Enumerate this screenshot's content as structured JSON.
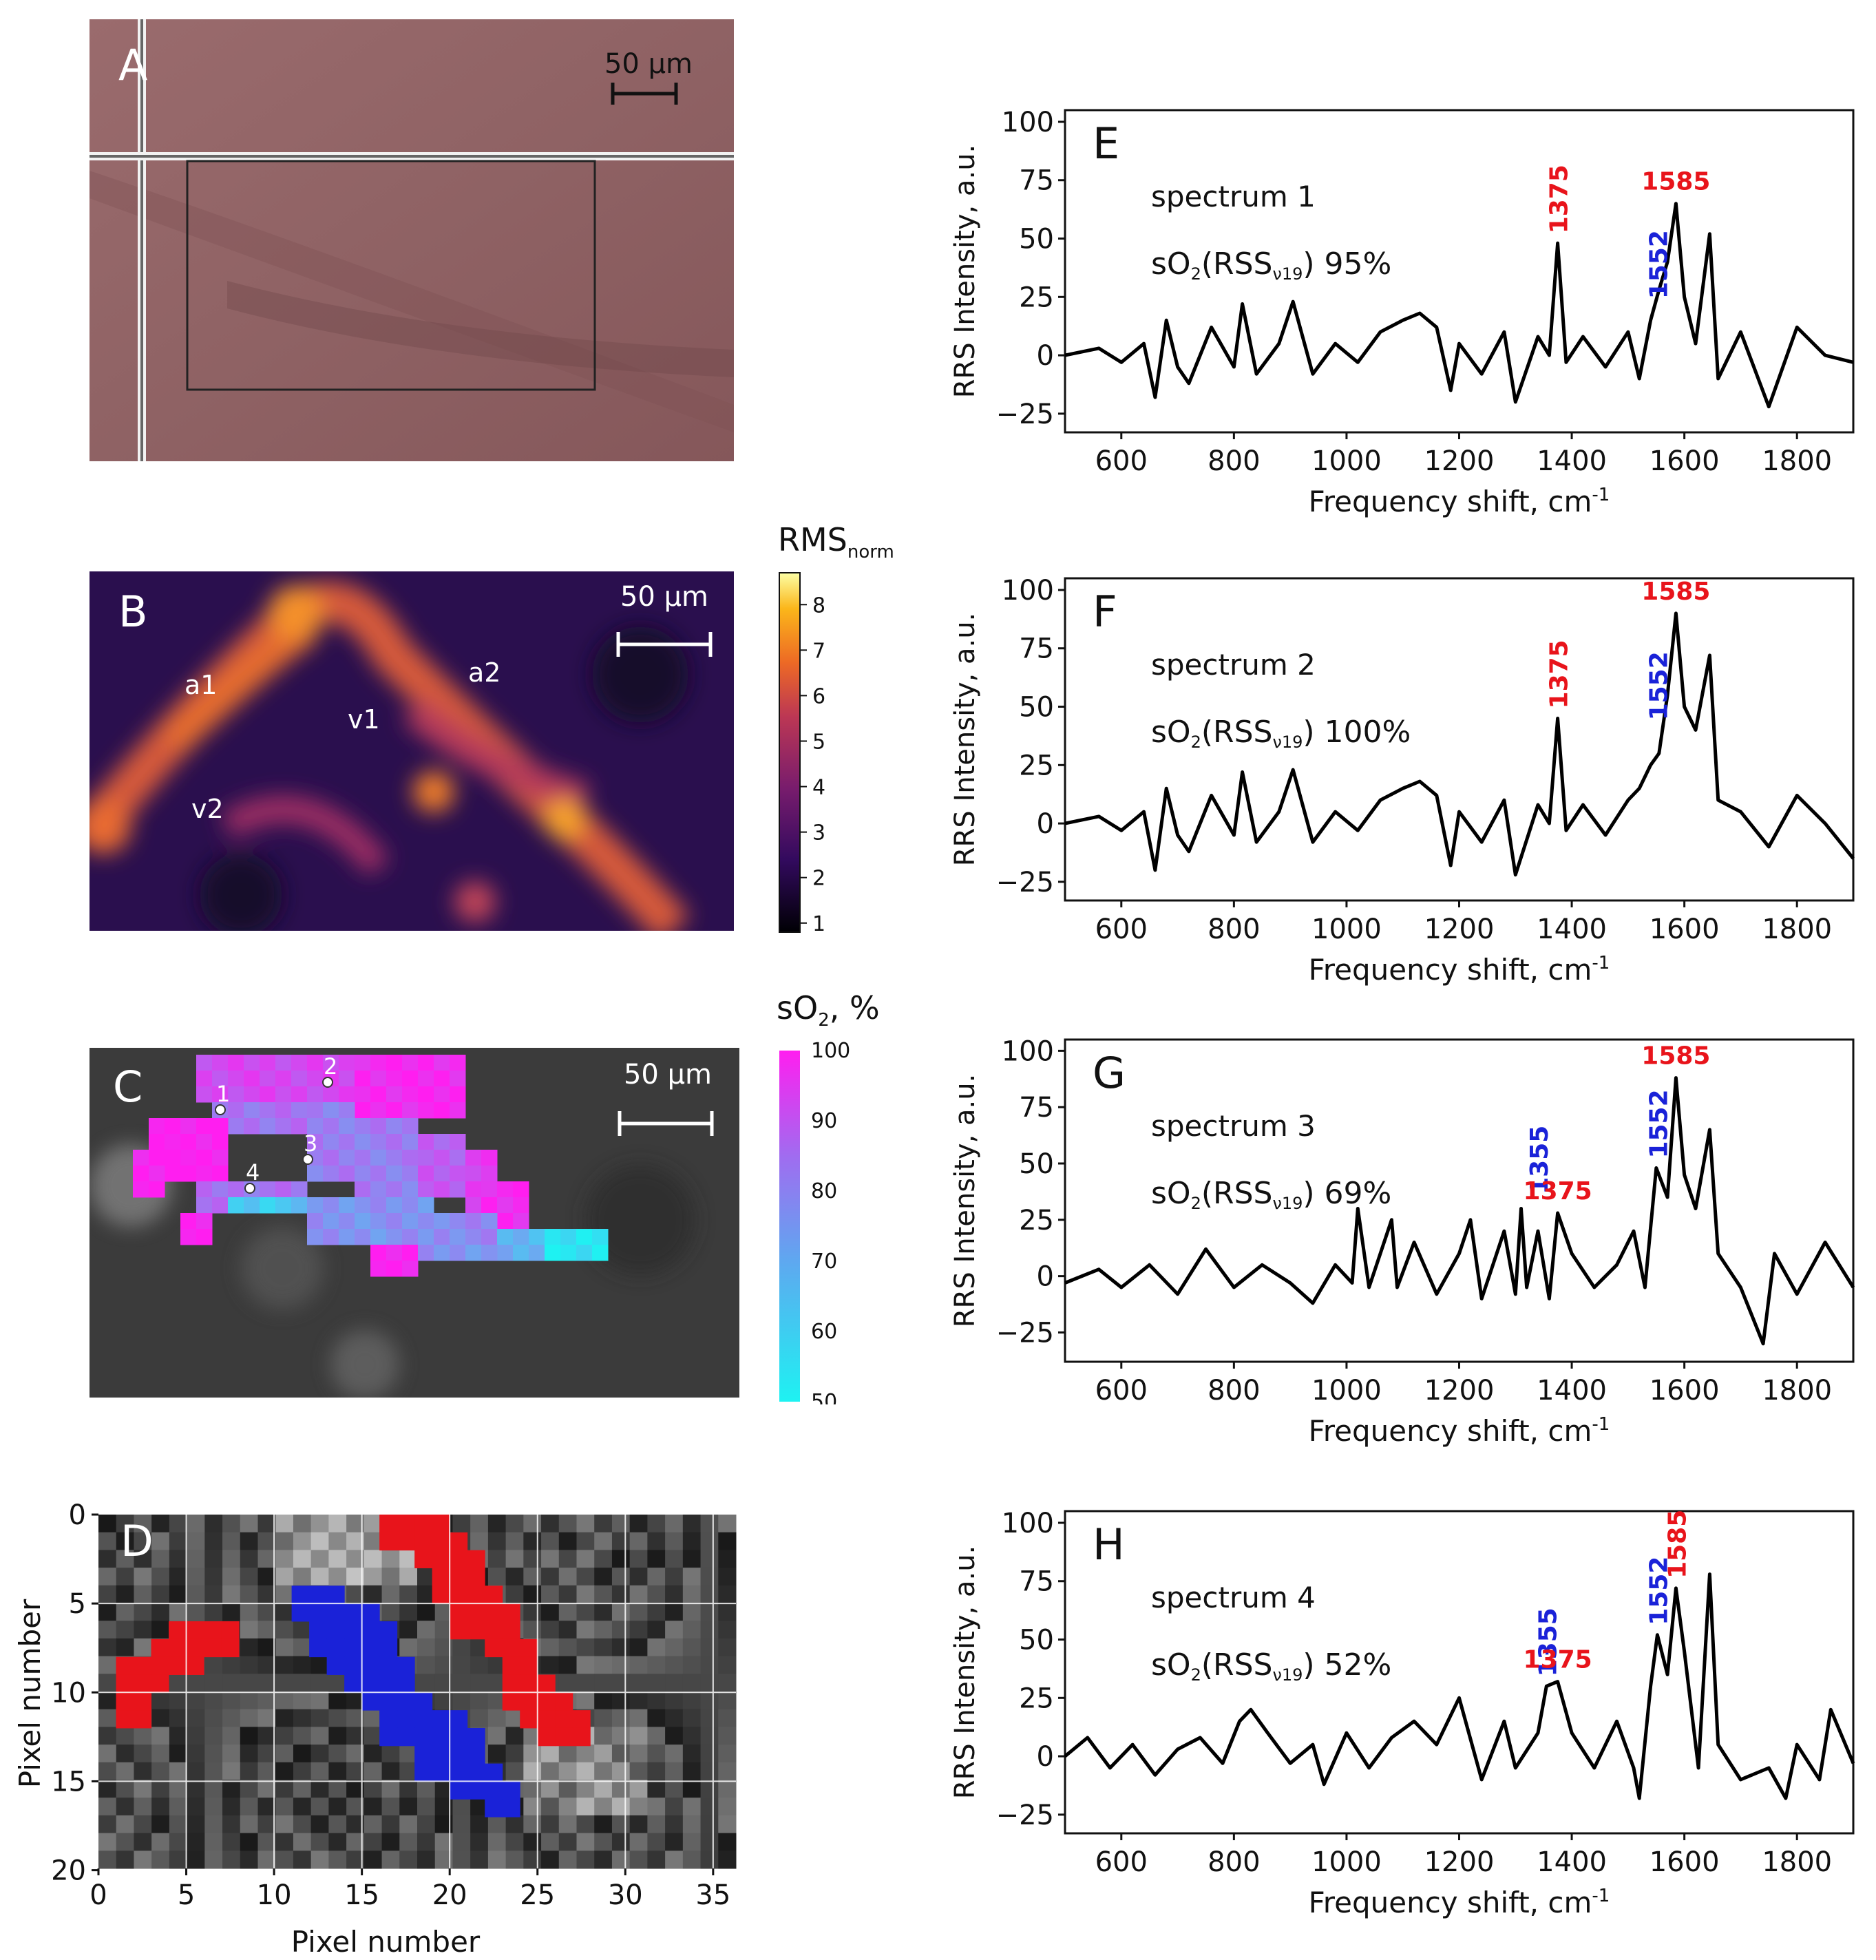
{
  "panels": {
    "A": {
      "letter": "A",
      "scale": "50 µm"
    },
    "B": {
      "letter": "B",
      "scale": "50 µm",
      "labels": [
        "a1",
        "a2",
        "v1",
        "v2"
      ],
      "colorbar": {
        "title_main": "RMS",
        "title_sub": "norm",
        "ticks": [
          "1",
          "2",
          "3",
          "4",
          "5",
          "6",
          "7",
          "8"
        ],
        "range": [
          0.8,
          8.7
        ]
      }
    },
    "C": {
      "letter": "C",
      "scale": "50 µm",
      "points": [
        "1",
        "2",
        "3",
        "4"
      ],
      "colorbar": {
        "title_main": "sO",
        "title_sub": "2",
        "title_tail": ", %",
        "ticks": [
          "50",
          "60",
          "70",
          "80",
          "90",
          "100"
        ],
        "range": [
          50,
          100
        ]
      }
    },
    "D": {
      "letter": "D",
      "xlabel": "Pixel number",
      "ylabel": "Pixel number",
      "xticks": [
        "0",
        "5",
        "10",
        "15",
        "20",
        "25",
        "30",
        "35"
      ],
      "yticks": [
        "0",
        "5",
        "10",
        "15",
        "20"
      ]
    }
  },
  "colors": {
    "red": "#e8141b",
    "blue": "#1a22d8",
    "magenta": "#ff1ef0",
    "cyan": "#1ef2f2"
  },
  "chart_data": [
    {
      "type": "line",
      "panel": "E",
      "title": "spectrum 1",
      "so2_prefix": "sO",
      "so2_sub": "2",
      "so2_mid": "(RSS",
      "so2_sub2": "ν19",
      "so2_value": ") 95%",
      "xlabel": "Frequency shift, cm",
      "xlabel_sup": "-1",
      "ylabel": "RRS Intensity, a.u.",
      "xlim": [
        500,
        1900
      ],
      "ylim": [
        -33,
        105
      ],
      "xticks": [
        "600",
        "800",
        "1000",
        "1200",
        "1400",
        "1600",
        "1800"
      ],
      "yticks": [
        "100",
        "75",
        "50",
        "25",
        "0",
        "−25"
      ],
      "peaks": [
        {
          "label": "1375",
          "x": 1375,
          "y": 48,
          "color": "red"
        },
        {
          "label": "1585",
          "x": 1585,
          "y": 65,
          "color": "red"
        },
        {
          "label": "1552",
          "x": 1552,
          "y": 20,
          "color": "blue"
        }
      ],
      "x": [
        500,
        560,
        600,
        640,
        660,
        680,
        700,
        720,
        760,
        800,
        815,
        840,
        880,
        905,
        940,
        980,
        1020,
        1060,
        1100,
        1130,
        1160,
        1185,
        1200,
        1240,
        1280,
        1300,
        1340,
        1360,
        1375,
        1390,
        1420,
        1460,
        1500,
        1520,
        1540,
        1555,
        1570,
        1585,
        1600,
        1620,
        1645,
        1660,
        1700,
        1750,
        1800,
        1850,
        1900
      ],
      "y": [
        0,
        3,
        -3,
        5,
        -18,
        15,
        -5,
        -12,
        12,
        -5,
        22,
        -8,
        5,
        23,
        -8,
        5,
        -3,
        10,
        15,
        18,
        12,
        -15,
        5,
        -8,
        10,
        -20,
        8,
        0,
        48,
        -3,
        8,
        -5,
        10,
        -10,
        15,
        28,
        40,
        65,
        25,
        5,
        52,
        -10,
        10,
        -22,
        12,
        0,
        -3
      ]
    },
    {
      "type": "line",
      "panel": "F",
      "title": "spectrum 2",
      "so2_prefix": "sO",
      "so2_sub": "2",
      "so2_mid": "(RSS",
      "so2_sub2": "ν19",
      "so2_value": ") 100%",
      "xlabel": "Frequency shift, cm",
      "xlabel_sup": "-1",
      "ylabel": "RRS Intensity, a.u.",
      "xlim": [
        500,
        1900
      ],
      "ylim": [
        -33,
        105
      ],
      "xticks": [
        "600",
        "800",
        "1000",
        "1200",
        "1400",
        "1600",
        "1800"
      ],
      "yticks": [
        "100",
        "75",
        "50",
        "25",
        "0",
        "−25"
      ],
      "peaks": [
        {
          "label": "1375",
          "x": 1375,
          "y": 45,
          "color": "red"
        },
        {
          "label": "1585",
          "x": 1585,
          "y": 90,
          "color": "red"
        },
        {
          "label": "1552",
          "x": 1552,
          "y": 40,
          "color": "blue"
        }
      ],
      "x": [
        500,
        560,
        600,
        640,
        660,
        680,
        700,
        720,
        760,
        800,
        815,
        840,
        880,
        905,
        940,
        980,
        1020,
        1060,
        1100,
        1130,
        1160,
        1185,
        1200,
        1240,
        1280,
        1300,
        1340,
        1360,
        1375,
        1390,
        1420,
        1460,
        1500,
        1520,
        1540,
        1555,
        1570,
        1585,
        1600,
        1620,
        1645,
        1660,
        1700,
        1750,
        1800,
        1850,
        1900
      ],
      "y": [
        0,
        3,
        -3,
        5,
        -20,
        15,
        -5,
        -12,
        12,
        -5,
        22,
        -8,
        5,
        23,
        -8,
        5,
        -3,
        10,
        15,
        18,
        12,
        -18,
        5,
        -8,
        10,
        -22,
        8,
        0,
        45,
        -3,
        8,
        -5,
        10,
        15,
        25,
        30,
        55,
        90,
        50,
        40,
        72,
        10,
        5,
        -10,
        12,
        0,
        -15
      ]
    },
    {
      "type": "line",
      "panel": "G",
      "title": "spectrum 3",
      "so2_prefix": "sO",
      "so2_sub": "2",
      "so2_mid": "(RSS",
      "so2_sub2": "ν19",
      "so2_value": ") 69%",
      "xlabel": "Frequency shift, cm",
      "xlabel_sup": "-1",
      "ylabel": "RRS Intensity, a.u.",
      "xlim": [
        500,
        1900
      ],
      "ylim": [
        -38,
        105
      ],
      "xticks": [
        "600",
        "800",
        "1000",
        "1200",
        "1400",
        "1600",
        "1800"
      ],
      "yticks": [
        "100",
        "75",
        "50",
        "25",
        "0",
        "−25"
      ],
      "peaks": [
        {
          "label": "1355",
          "x": 1340,
          "y": 32,
          "color": "blue"
        },
        {
          "label": "1375",
          "x": 1375,
          "y": 28,
          "color": "red"
        },
        {
          "label": "1552",
          "x": 1552,
          "y": 48,
          "color": "blue"
        },
        {
          "label": "1585",
          "x": 1585,
          "y": 88,
          "color": "red"
        }
      ],
      "x": [
        500,
        560,
        600,
        650,
        700,
        750,
        800,
        850,
        900,
        940,
        980,
        1010,
        1020,
        1040,
        1080,
        1090,
        1120,
        1160,
        1200,
        1220,
        1240,
        1280,
        1300,
        1310,
        1320,
        1340,
        1360,
        1375,
        1400,
        1440,
        1480,
        1510,
        1530,
        1550,
        1570,
        1585,
        1600,
        1620,
        1645,
        1660,
        1700,
        1740,
        1760,
        1800,
        1850,
        1900
      ],
      "y": [
        -3,
        3,
        -5,
        5,
        -8,
        12,
        -5,
        5,
        -3,
        -12,
        5,
        -3,
        30,
        -5,
        25,
        -5,
        15,
        -8,
        10,
        25,
        -10,
        20,
        -8,
        30,
        -5,
        20,
        -10,
        28,
        10,
        -5,
        5,
        20,
        -5,
        48,
        35,
        88,
        45,
        30,
        65,
        10,
        -5,
        -30,
        10,
        -8,
        15,
        -5
      ]
    },
    {
      "type": "line",
      "panel": "H",
      "title": "spectrum 4",
      "so2_prefix": "sO",
      "so2_sub": "2",
      "so2_mid": "(RSS",
      "so2_sub2": "ν19",
      "so2_value": ") 52%",
      "xlabel": "Frequency shift, cm",
      "xlabel_sup": "-1",
      "ylabel": "RRS Intensity, a.u.",
      "xlim": [
        500,
        1900
      ],
      "ylim": [
        -33,
        105
      ],
      "xticks": [
        "600",
        "800",
        "1000",
        "1200",
        "1400",
        "1600",
        "1800"
      ],
      "yticks": [
        "100",
        "75",
        "50",
        "25",
        "0",
        "−25"
      ],
      "peaks": [
        {
          "label": "1355",
          "x": 1355,
          "y": 30,
          "color": "blue"
        },
        {
          "label": "1375",
          "x": 1375,
          "y": 32,
          "color": "red"
        },
        {
          "label": "1552",
          "x": 1552,
          "y": 52,
          "color": "blue"
        },
        {
          "label": "1585",
          "x": 1585,
          "y": 72,
          "color": "red"
        }
      ],
      "x": [
        500,
        540,
        580,
        620,
        660,
        700,
        740,
        780,
        810,
        830,
        860,
        900,
        940,
        960,
        1000,
        1040,
        1080,
        1120,
        1160,
        1200,
        1240,
        1280,
        1300,
        1340,
        1355,
        1375,
        1400,
        1440,
        1480,
        1510,
        1520,
        1540,
        1552,
        1570,
        1585,
        1600,
        1625,
        1645,
        1660,
        1700,
        1750,
        1780,
        1800,
        1840,
        1860,
        1900
      ],
      "y": [
        0,
        8,
        -5,
        5,
        -8,
        3,
        8,
        -3,
        15,
        20,
        10,
        -3,
        5,
        -12,
        10,
        -5,
        8,
        15,
        5,
        25,
        -10,
        15,
        -5,
        10,
        30,
        32,
        10,
        -5,
        15,
        -5,
        -18,
        30,
        52,
        35,
        72,
        45,
        -5,
        78,
        5,
        -10,
        -5,
        -18,
        5,
        -10,
        20,
        -3
      ]
    }
  ]
}
